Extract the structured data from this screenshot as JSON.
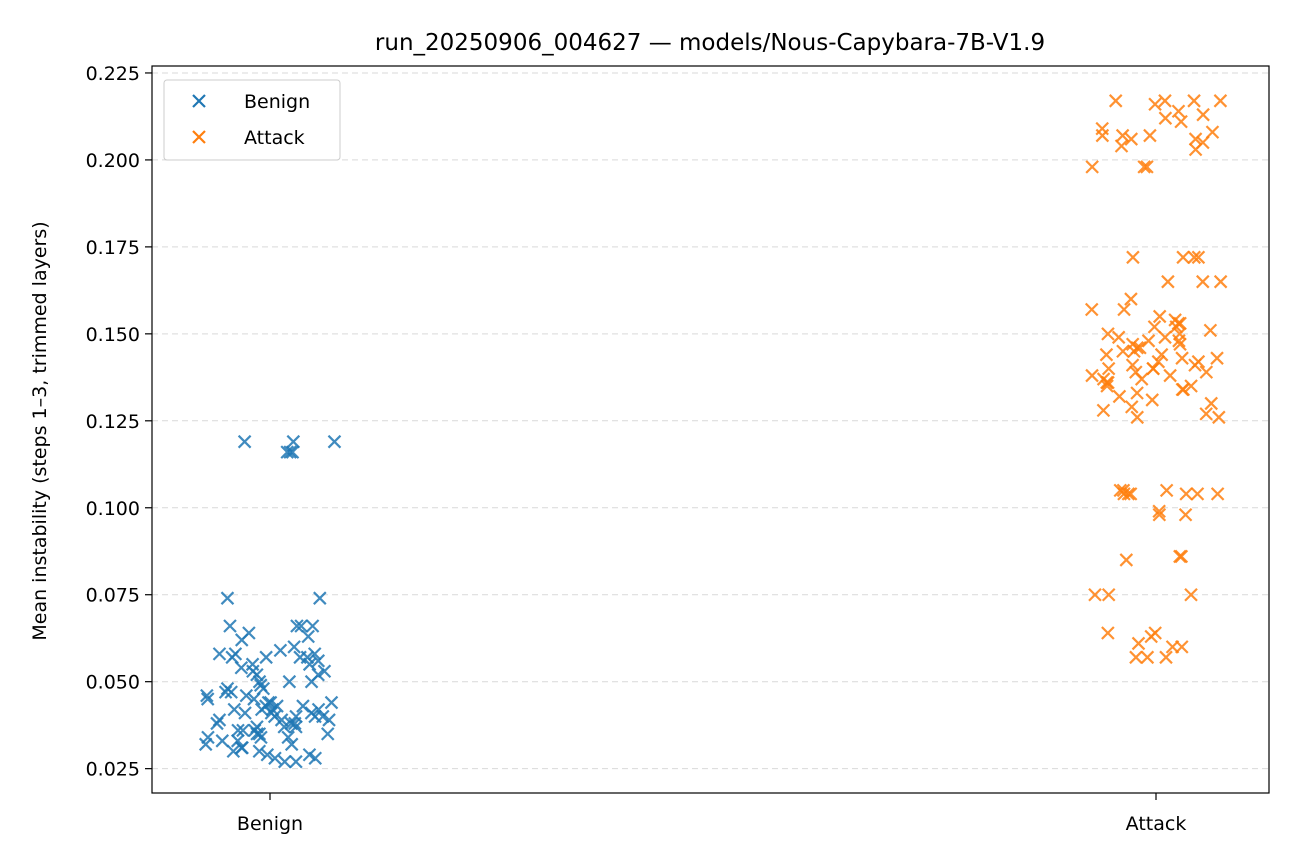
{
  "chart_data": {
    "type": "scatter",
    "title": "run_20250906_004627 — models/Nous-Capybara-7B-V1.9",
    "xlabel": "",
    "ylabel": "Mean instability (steps 1–3, trimmed layers)",
    "categories": [
      "Benign",
      "Attack"
    ],
    "ylim": [
      0.018,
      0.227
    ],
    "yticks": [
      "0.025",
      "0.050",
      "0.075",
      "0.100",
      "0.125",
      "0.150",
      "0.175",
      "0.200",
      "0.225"
    ],
    "grid": "horizontal dashed",
    "legend_position": "top-left",
    "marker": "x",
    "series": [
      {
        "name": "Benign",
        "color": "#1f77b4",
        "values": [
          0.116,
          0.119,
          0.116,
          0.119,
          0.119,
          0.116,
          0.074,
          0.074,
          0.066,
          0.066,
          0.066,
          0.064,
          0.063,
          0.066,
          0.059,
          0.058,
          0.057,
          0.057,
          0.056,
          0.058,
          0.058,
          0.057,
          0.057,
          0.055,
          0.054,
          0.053,
          0.053,
          0.052,
          0.05,
          0.049,
          0.05,
          0.048,
          0.047,
          0.046,
          0.045,
          0.044,
          0.044,
          0.043,
          0.043,
          0.042,
          0.042,
          0.042,
          0.041,
          0.041,
          0.04,
          0.04,
          0.04,
          0.039,
          0.039,
          0.038,
          0.038,
          0.037,
          0.037,
          0.036,
          0.036,
          0.035,
          0.035,
          0.035,
          0.034,
          0.034,
          0.033,
          0.033,
          0.032,
          0.032,
          0.031,
          0.031,
          0.03,
          0.03,
          0.029,
          0.029,
          0.028,
          0.028,
          0.027,
          0.027,
          0.045,
          0.043,
          0.048,
          0.041,
          0.038,
          0.036,
          0.044,
          0.039,
          0.047,
          0.042,
          0.04,
          0.037,
          0.046,
          0.034,
          0.05,
          0.052,
          0.055,
          0.06,
          0.062
        ]
      },
      {
        "name": "Attack",
        "color": "#ff7f0e",
        "values": [
          0.217,
          0.217,
          0.216,
          0.217,
          0.217,
          0.214,
          0.213,
          0.212,
          0.211,
          0.209,
          0.208,
          0.207,
          0.207,
          0.207,
          0.206,
          0.206,
          0.205,
          0.204,
          0.203,
          0.198,
          0.198,
          0.198,
          0.172,
          0.172,
          0.172,
          0.172,
          0.165,
          0.165,
          0.165,
          0.16,
          0.157,
          0.157,
          0.155,
          0.154,
          0.153,
          0.153,
          0.152,
          0.152,
          0.151,
          0.15,
          0.15,
          0.149,
          0.149,
          0.148,
          0.148,
          0.147,
          0.147,
          0.146,
          0.146,
          0.145,
          0.145,
          0.144,
          0.144,
          0.143,
          0.143,
          0.142,
          0.142,
          0.141,
          0.141,
          0.14,
          0.14,
          0.14,
          0.139,
          0.139,
          0.138,
          0.138,
          0.137,
          0.137,
          0.136,
          0.136,
          0.135,
          0.135,
          0.134,
          0.134,
          0.133,
          0.132,
          0.131,
          0.13,
          0.129,
          0.128,
          0.127,
          0.126,
          0.126,
          0.105,
          0.105,
          0.105,
          0.104,
          0.104,
          0.104,
          0.104,
          0.104,
          0.104,
          0.099,
          0.098,
          0.098,
          0.086,
          0.086,
          0.085,
          0.075,
          0.075,
          0.075,
          0.064,
          0.064,
          0.063,
          0.061,
          0.06,
          0.06,
          0.057,
          0.057,
          0.057
        ]
      }
    ]
  }
}
